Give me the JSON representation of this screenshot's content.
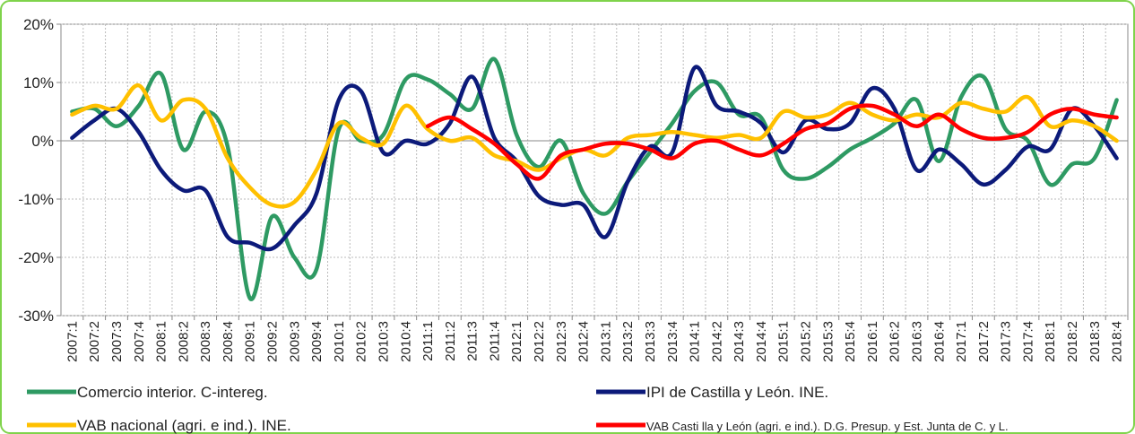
{
  "chart_data": {
    "type": "line",
    "categories": [
      "2007:1",
      "2007:2",
      "2007:3",
      "2007:4",
      "2008:1",
      "2008:2",
      "2008:3",
      "2008:4",
      "2009:1",
      "2009:2",
      "2009:3",
      "2009:4",
      "2010:1",
      "2010:2",
      "2010:3",
      "2010:4",
      "2011:1",
      "2011:2",
      "2011:3",
      "2011:4",
      "2012:1",
      "2012:2",
      "2012:3",
      "2012:4",
      "2013:1",
      "2013:2",
      "2013:3",
      "2013:4",
      "2014:1",
      "2014:2",
      "2014:3",
      "2014:4",
      "2015:1",
      "2015:2",
      "2015:3",
      "2015:4",
      "2016:1",
      "2016:2",
      "2016:3",
      "2016:4",
      "2017:1",
      "2017:2",
      "2017:3",
      "2017:4",
      "2018:1",
      "2018:2",
      "2018:3",
      "2018:4"
    ],
    "series": [
      {
        "name": "Comercio interior. C-intereg.",
        "color": "#2e9a63",
        "values": [
          5,
          5.5,
          2.5,
          6,
          11.5,
          -1.5,
          5,
          -1,
          -27,
          -13,
          -20,
          -22,
          2,
          0,
          1,
          10.5,
          10.5,
          8,
          5.5,
          14,
          1,
          -4.5,
          0,
          -9,
          -12.5,
          -7,
          -2,
          3,
          8.5,
          10,
          4.5,
          4,
          -5,
          -6.5,
          -4.5,
          -1.5,
          0.5,
          3,
          7,
          -3.5,
          7.5,
          11,
          2,
          0,
          -7.5,
          -4,
          -3,
          7
        ]
      },
      {
        "name": "IPI de Castilla y León. INE.",
        "color": "#0c1a7a",
        "values": [
          0.5,
          3.5,
          5.5,
          1.5,
          -5,
          -8.5,
          -8.5,
          -16.5,
          -17.5,
          -18.5,
          -14.5,
          -9,
          7,
          8.5,
          -2,
          0,
          -0.5,
          3,
          11,
          0.5,
          -3.5,
          -9.5,
          -11,
          -11,
          -16.5,
          -7,
          -1,
          -2,
          12.5,
          6,
          5,
          3,
          -2,
          3.5,
          2,
          3,
          9,
          5.5,
          -5,
          -1.5,
          -4,
          -7.5,
          -5,
          -1,
          -1.5,
          5.5,
          2.5,
          -3
        ]
      },
      {
        "name": "VAB nacional (agri. e ind.). INE.",
        "color": "#ffc000",
        "values": [
          4.5,
          6,
          5.5,
          9.5,
          3.5,
          7,
          5.5,
          -3,
          -8,
          -11,
          -10.5,
          -5,
          3,
          0.5,
          -0.5,
          6,
          2,
          0,
          0.5,
          -2.5,
          -3.5,
          -5,
          -3,
          -1.5,
          -2.5,
          0.5,
          1,
          1.5,
          1,
          0.5,
          1,
          0.5,
          5,
          4,
          4.5,
          6.5,
          4.5,
          3.5,
          4.5,
          4,
          6.5,
          5.5,
          5,
          7.5,
          2.5,
          3.5,
          2.5,
          0
        ]
      },
      {
        "name": "VAB Casti lla y León (agri. e ind.). D.G. Presup. y Est. Junta de C. y L.",
        "color": "#ff0000",
        "values": [
          null,
          null,
          null,
          null,
          null,
          null,
          null,
          null,
          null,
          null,
          null,
          null,
          null,
          null,
          null,
          null,
          2.5,
          4,
          2,
          -0.5,
          -4,
          -6.5,
          -2.5,
          -1.5,
          -0.5,
          -0.5,
          -1.5,
          -3,
          -0.5,
          0,
          -1.5,
          -2.5,
          -0.5,
          2,
          3,
          5.5,
          6,
          4.5,
          2.5,
          4.5,
          2,
          0.5,
          0.5,
          1.5,
          4.5,
          5.5,
          4.5,
          4
        ]
      }
    ],
    "ylim": [
      -30,
      20
    ],
    "yticks": [
      {
        "value": -30,
        "label": "-30%"
      },
      {
        "value": -20,
        "label": "-20%"
      },
      {
        "value": -10,
        "label": "-10%"
      },
      {
        "value": 0,
        "label": "0%"
      },
      {
        "value": 10,
        "label": "10%"
      },
      {
        "value": 20,
        "label": "20%"
      }
    ],
    "grid": true
  }
}
